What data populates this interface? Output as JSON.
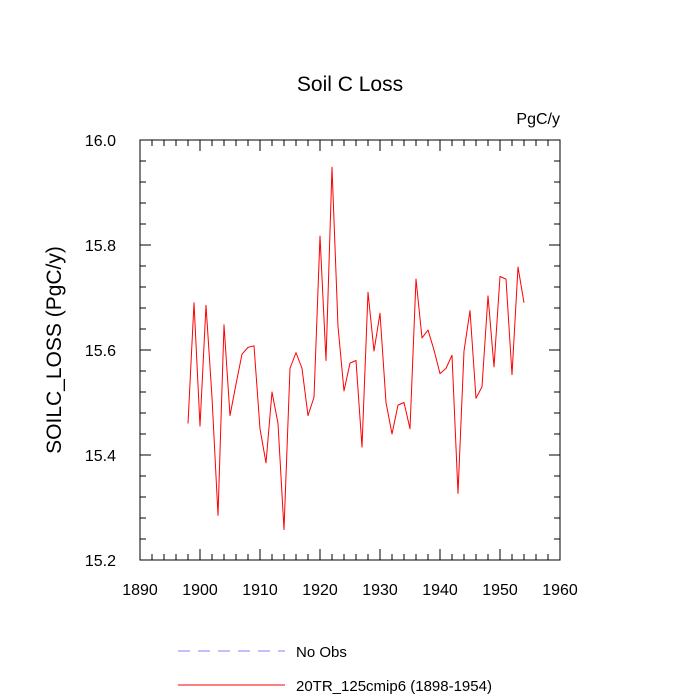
{
  "chart_data": {
    "type": "line",
    "title": "Soil C Loss",
    "units_label": "PgC/y",
    "ylabel": "SOILC_LOSS  (PgC/y)",
    "xlabel": "",
    "xlim": [
      1890,
      1960
    ],
    "ylim": [
      15.2,
      16.0
    ],
    "x_ticks": [
      1890,
      1900,
      1910,
      1920,
      1930,
      1940,
      1950,
      1960
    ],
    "y_ticks": [
      15.2,
      15.4,
      15.6,
      15.8,
      16.0
    ],
    "y_tick_labels": [
      "15.2",
      "15.4",
      "15.6",
      "15.8",
      "16.0"
    ],
    "x_minor_step": 2,
    "y_minor_step": 0.04,
    "grid": false,
    "legend_position": "bottom",
    "legend": [
      {
        "label": "No Obs",
        "color": "#8080ff",
        "dashed": true
      },
      {
        "label": "20TR_125cmip6 (1898-1954)",
        "color": "#ff0000",
        "dashed": false
      }
    ],
    "series": [
      {
        "name": "20TR_125cmip6 (1898-1954)",
        "color": "#ff0000",
        "x": [
          1898,
          1899,
          1900,
          1901,
          1902,
          1903,
          1904,
          1905,
          1906,
          1907,
          1908,
          1909,
          1910,
          1911,
          1912,
          1913,
          1914,
          1915,
          1916,
          1917,
          1918,
          1919,
          1920,
          1921,
          1922,
          1923,
          1924,
          1925,
          1926,
          1927,
          1928,
          1929,
          1930,
          1931,
          1932,
          1933,
          1934,
          1935,
          1936,
          1937,
          1938,
          1939,
          1940,
          1941,
          1942,
          1943,
          1944,
          1945,
          1946,
          1947,
          1948,
          1949,
          1950,
          1951,
          1952,
          1953,
          1954
        ],
        "values": [
          15.46,
          15.69,
          15.455,
          15.685,
          15.51,
          15.285,
          15.648,
          15.475,
          15.535,
          15.592,
          15.605,
          15.608,
          15.45,
          15.385,
          15.52,
          15.46,
          15.258,
          15.565,
          15.595,
          15.565,
          15.475,
          15.51,
          15.817,
          15.58,
          15.948,
          15.645,
          15.522,
          15.575,
          15.58,
          15.415,
          15.71,
          15.598,
          15.67,
          15.5,
          15.44,
          15.495,
          15.5,
          15.45,
          15.735,
          15.623,
          15.638,
          15.6,
          15.555,
          15.565,
          15.59,
          15.327,
          15.598,
          15.675,
          15.508,
          15.53,
          15.703,
          15.568,
          15.74,
          15.735,
          15.553,
          15.758,
          15.69
        ]
      }
    ]
  }
}
